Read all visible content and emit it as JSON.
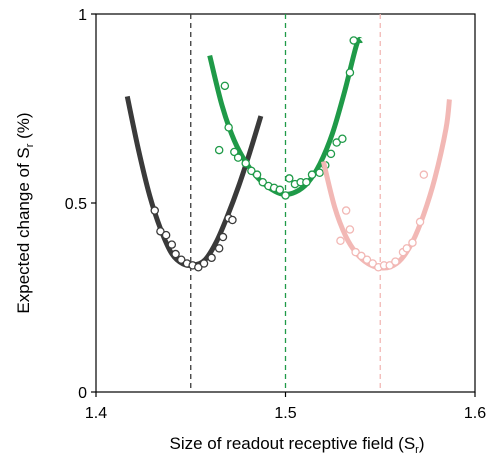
{
  "chart_data": {
    "type": "scatter",
    "title": "",
    "xlabel": {
      "text": "Size of readout receptive field (S",
      "sub": "r",
      "suffix": ")"
    },
    "ylabel": {
      "text": "Expected change of S",
      "sub": "r",
      "suffix": "  (%)"
    },
    "xlim": [
      1.4,
      1.6
    ],
    "ylim": [
      0,
      1
    ],
    "xticks": [
      1.4,
      1.5,
      1.6
    ],
    "xtick_labels": [
      "1.4",
      "1.5",
      "1.6"
    ],
    "yticks": [
      0,
      0.5,
      1
    ],
    "ytick_labels": [
      "0",
      "0.5",
      "1"
    ],
    "grid": false,
    "series": [
      {
        "color": "#3a3a3a",
        "center": 1.45,
        "fit": {
          "x": [
            1.4165,
            1.4224,
            1.4283,
            1.4341,
            1.44,
            1.4459,
            1.4518,
            1.4576,
            1.4635,
            1.4694,
            1.4753,
            1.4811,
            1.487
          ],
          "y": [
            0.782,
            0.641,
            0.52,
            0.431,
            0.366,
            0.339,
            0.336,
            0.35,
            0.397,
            0.466,
            0.545,
            0.633,
            0.73
          ]
        },
        "points": {
          "x": [
            1.431,
            1.434,
            1.437,
            1.44,
            1.442,
            1.445,
            1.448,
            1.451,
            1.454,
            1.457,
            1.461,
            1.465,
            1.467,
            1.47,
            1.472
          ],
          "y": [
            0.48,
            0.425,
            0.415,
            0.39,
            0.365,
            0.35,
            0.34,
            0.335,
            0.33,
            0.34,
            0.355,
            0.38,
            0.41,
            0.46,
            0.455
          ]
        }
      },
      {
        "color": "#1f9a48",
        "center": 1.5,
        "fit": {
          "x": [
            1.46,
            1.4665,
            1.4729,
            1.4794,
            1.4859,
            1.4924,
            1.4988,
            1.5053,
            1.5118,
            1.5182,
            1.5247,
            1.5312,
            1.5376,
            1.54
          ],
          "y": [
            0.89,
            0.758,
            0.666,
            0.605,
            0.564,
            0.537,
            0.523,
            0.529,
            0.554,
            0.604,
            0.683,
            0.795,
            0.92,
            0.93
          ]
        },
        "points": {
          "x": [
            1.468,
            1.47,
            1.473,
            1.475,
            1.479,
            1.482,
            1.485,
            1.488,
            1.491,
            1.494,
            1.497,
            1.5,
            1.502,
            1.505,
            1.508,
            1.511,
            1.514,
            1.518,
            1.521,
            1.524,
            1.527,
            1.53,
            1.534,
            1.536,
            1.465
          ],
          "y": [
            0.81,
            0.7,
            0.635,
            0.62,
            0.605,
            0.585,
            0.575,
            0.555,
            0.545,
            0.54,
            0.535,
            0.52,
            0.565,
            0.55,
            0.555,
            0.555,
            0.575,
            0.58,
            0.6,
            0.63,
            0.66,
            0.67,
            0.845,
            0.93,
            0.64
          ]
        }
      },
      {
        "color": "#f2b8b5",
        "center": 1.55,
        "fit": {
          "x": [
            1.52,
            1.5259,
            1.5318,
            1.5376,
            1.5435,
            1.5494,
            1.5553,
            1.5612,
            1.5671,
            1.5729,
            1.5788,
            1.5847,
            1.5865
          ],
          "y": [
            0.61,
            0.49,
            0.412,
            0.366,
            0.34,
            0.329,
            0.331,
            0.352,
            0.398,
            0.469,
            0.565,
            0.697,
            0.774
          ]
        },
        "points": {
          "x": [
            1.529,
            1.532,
            1.534,
            1.537,
            1.54,
            1.543,
            1.546,
            1.549,
            1.552,
            1.555,
            1.558,
            1.562,
            1.564,
            1.567,
            1.571,
            1.573
          ],
          "y": [
            0.4,
            0.48,
            0.43,
            0.37,
            0.36,
            0.35,
            0.34,
            0.33,
            0.335,
            0.335,
            0.345,
            0.37,
            0.38,
            0.395,
            0.45,
            0.575
          ]
        }
      }
    ]
  }
}
